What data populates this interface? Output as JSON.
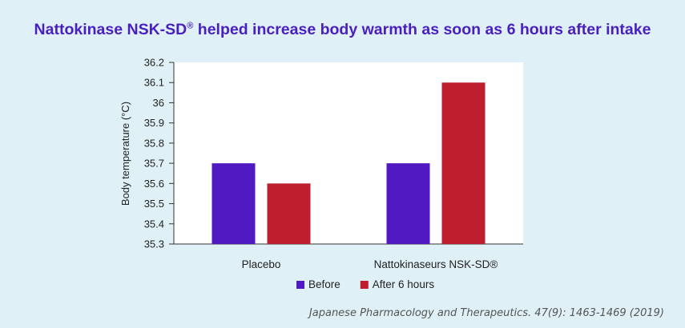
{
  "title_main": "Nattokinase NSK-SD",
  "title_mark": "®",
  "title_rest": " helped increase body warmth as soon as 6 hours after intake",
  "citation": "Japanese Pharmacology and Therapeutics. 47(9): 1463-1469 (2019)",
  "chart_data": {
    "type": "bar",
    "categories": [
      "Placebo",
      "Nattokinaseurs NSK-SD®"
    ],
    "series": [
      {
        "name": "Before",
        "color": "#5119c2",
        "values": [
          35.7,
          35.7
        ]
      },
      {
        "name": "After 6 hours",
        "color": "#be1e2d",
        "values": [
          35.6,
          36.1
        ]
      }
    ],
    "ylabel": "Body temperature (°C)",
    "ylim": [
      35.3,
      36.2
    ],
    "yticks": [
      "35.3",
      "35.4",
      "35.5",
      "35.6",
      "35.7",
      "35.8",
      "35.9",
      "36",
      "36.1",
      "36.2"
    ],
    "grid": false,
    "legend": "bottom"
  }
}
